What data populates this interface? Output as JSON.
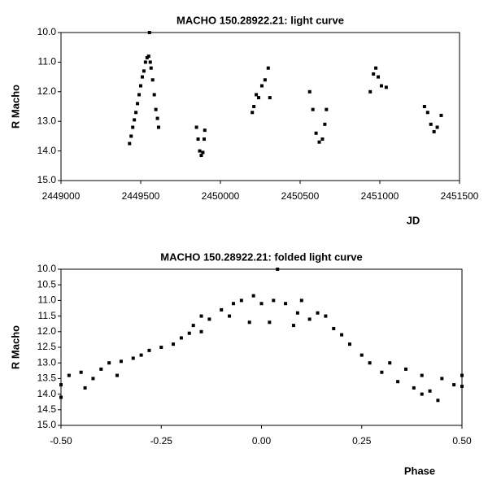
{
  "chart_data": [
    {
      "type": "scatter",
      "title": "MACHO 150.28922.21: light curve",
      "x_label": "JD",
      "y_label": "R Macho",
      "color": "#000000",
      "y_inverted": true,
      "xlim": [
        2449000,
        2451500
      ],
      "xticks": [
        2449000,
        2449500,
        2450000,
        2450500,
        2451000,
        2451500
      ],
      "ylim": [
        10,
        15
      ],
      "yticks": [
        {
          "value": 10,
          "label": "10.0"
        },
        {
          "value": 11,
          "label": "11.0"
        },
        {
          "value": 12,
          "label": "12.0"
        },
        {
          "value": 13,
          "label": "13.0"
        },
        {
          "value": 14,
          "label": "14.0"
        },
        {
          "value": 15,
          "label": "15.0"
        }
      ],
      "x": [
        2449430,
        2449440,
        2449450,
        2449460,
        2449470,
        2449480,
        2449490,
        2449500,
        2449510,
        2449520,
        2449530,
        2449540,
        2449550,
        2449555,
        2449560,
        2449565,
        2449575,
        2449585,
        2449595,
        2449605,
        2449612,
        2449850,
        2449860,
        2449870,
        2449880,
        2449890,
        2449898,
        2449902,
        2450200,
        2450210,
        2450225,
        2450240,
        2450260,
        2450280,
        2450300,
        2450310,
        2450560,
        2450580,
        2450600,
        2450620,
        2450640,
        2450655,
        2450665,
        2450940,
        2450960,
        2450975,
        2450990,
        2451010,
        2451040,
        2451280,
        2451300,
        2451320,
        2451340,
        2451360,
        2451385
      ],
      "values": [
        13.75,
        13.5,
        13.2,
        12.95,
        12.7,
        12.4,
        12.1,
        11.8,
        11.5,
        11.3,
        11.0,
        10.85,
        10.8,
        10.0,
        11.0,
        11.2,
        11.6,
        12.1,
        12.6,
        12.9,
        13.2,
        13.2,
        13.6,
        14.0,
        14.15,
        14.05,
        13.6,
        13.3,
        12.7,
        12.5,
        12.1,
        12.2,
        11.8,
        11.6,
        11.2,
        12.2,
        12.0,
        12.6,
        13.4,
        13.7,
        13.6,
        13.1,
        12.6,
        12.0,
        11.4,
        11.2,
        11.5,
        11.8,
        11.85,
        12.5,
        12.7,
        13.1,
        13.35,
        13.2,
        12.8
      ]
    },
    {
      "type": "scatter",
      "title": "MACHO 150.28922.21: folded light curve",
      "x_label": "Phase",
      "y_label": "R Macho",
      "color": "#000000",
      "y_inverted": true,
      "xlim": [
        -0.5,
        0.5
      ],
      "xticks": [
        {
          "value": -0.5,
          "label": "-0.50"
        },
        {
          "value": -0.25,
          "label": "-0.25"
        },
        {
          "value": 0,
          "label": "0.00"
        },
        {
          "value": 0.25,
          "label": "0.25"
        },
        {
          "value": 0.5,
          "label": "0.50"
        }
      ],
      "ylim": [
        10,
        15
      ],
      "yticks": [
        {
          "value": 10,
          "label": "10.0"
        },
        {
          "value": 10.5,
          "label": "10.5"
        },
        {
          "value": 11,
          "label": "11.0"
        },
        {
          "value": 11.5,
          "label": "11.5"
        },
        {
          "value": 12,
          "label": "12.0"
        },
        {
          "value": 12.5,
          "label": "12.5"
        },
        {
          "value": 13,
          "label": "13.0"
        },
        {
          "value": 13.5,
          "label": "13.5"
        },
        {
          "value": 14,
          "label": "14.0"
        },
        {
          "value": 14.5,
          "label": "14.5"
        },
        {
          "value": 15,
          "label": "15.0"
        }
      ],
      "x": [
        -0.5,
        -0.5,
        -0.48,
        -0.45,
        -0.44,
        -0.42,
        -0.4,
        -0.38,
        -0.36,
        -0.35,
        -0.32,
        -0.3,
        -0.28,
        -0.25,
        -0.22,
        -0.2,
        -0.18,
        -0.17,
        -0.15,
        -0.15,
        -0.13,
        -0.1,
        -0.08,
        -0.07,
        -0.05,
        -0.03,
        -0.02,
        0.0,
        0.02,
        0.03,
        0.04,
        0.06,
        0.08,
        0.09,
        0.1,
        0.12,
        0.14,
        0.16,
        0.18,
        0.2,
        0.22,
        0.25,
        0.27,
        0.3,
        0.32,
        0.34,
        0.36,
        0.38,
        0.4,
        0.4,
        0.42,
        0.44,
        0.45,
        0.48,
        0.5,
        0.5
      ],
      "values": [
        13.7,
        14.1,
        13.4,
        13.3,
        13.8,
        13.5,
        13.2,
        13.0,
        13.4,
        12.95,
        12.85,
        12.75,
        12.6,
        12.5,
        12.4,
        12.2,
        12.05,
        11.8,
        11.5,
        12.0,
        11.6,
        11.3,
        11.5,
        11.1,
        11.0,
        11.7,
        10.85,
        11.1,
        11.7,
        11.0,
        10.0,
        11.1,
        11.8,
        11.4,
        11.0,
        11.6,
        11.4,
        11.5,
        11.9,
        12.1,
        12.4,
        12.75,
        13.0,
        13.3,
        13.0,
        13.6,
        13.2,
        13.8,
        13.4,
        14.0,
        13.9,
        14.2,
        13.5,
        13.7,
        13.75,
        13.4
      ]
    }
  ]
}
